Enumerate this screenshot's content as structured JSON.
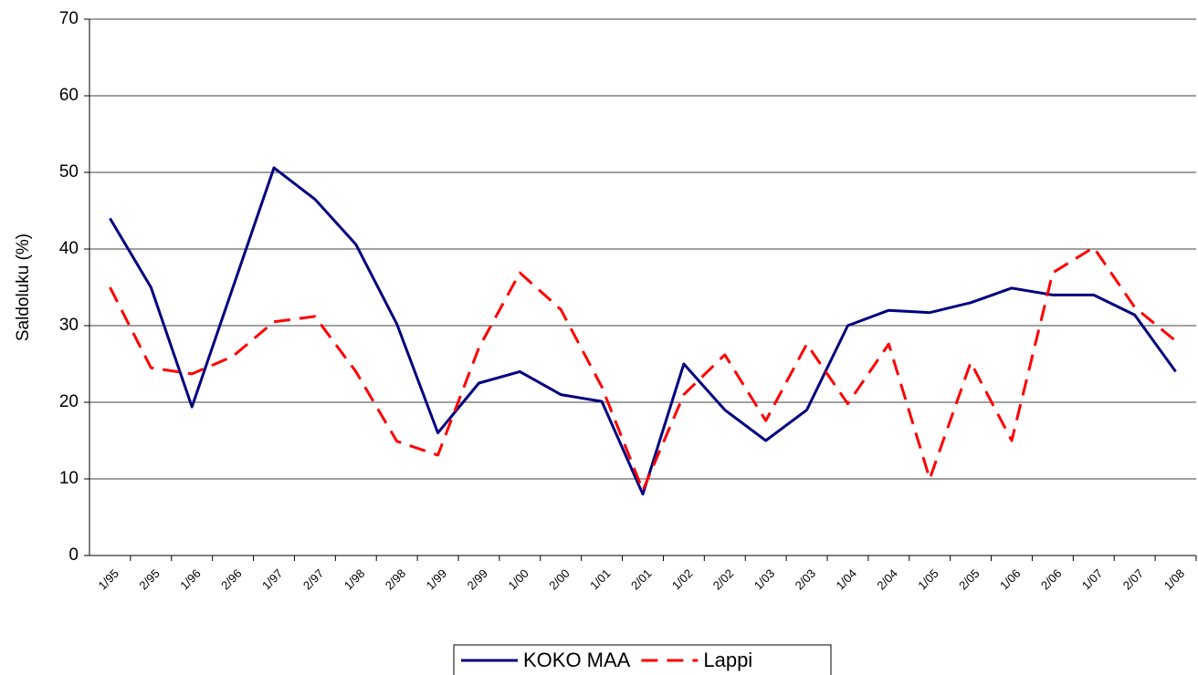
{
  "chart_data": {
    "type": "line",
    "y_label": "Saldoluku (%)",
    "categories": [
      "1/95",
      "2/95",
      "1/96",
      "2/96",
      "1/97",
      "2/97",
      "1/98",
      "2/98",
      "1/99",
      "2/99",
      "1/00",
      "2/00",
      "1/01",
      "2/01",
      "1/02",
      "2/02",
      "1/03",
      "2/03",
      "1/04",
      "2/04",
      "1/05",
      "2/05",
      "1/06",
      "2/06",
      "1/07",
      "2/07",
      "1/08"
    ],
    "series": [
      {
        "name": "KOKO MAA",
        "color": "#000080",
        "dash": "solid",
        "values": [
          44,
          35,
          19.4,
          35,
          50.6,
          46.5,
          40.6,
          30.2,
          16,
          22.5,
          24,
          21,
          20.1,
          8,
          25,
          19,
          15,
          19,
          30,
          32,
          31.7,
          33,
          34.9,
          34,
          34,
          31.4,
          24
        ]
      },
      {
        "name": "Lappi",
        "color": "#ff0000",
        "dash": "dashed",
        "values": [
          35,
          24.5,
          23.7,
          26,
          30.5,
          31.2,
          24,
          14.9,
          13.1,
          27.1,
          36.9,
          32.1,
          22,
          8.5,
          21,
          26.2,
          17.6,
          27.6,
          19.8,
          27.6,
          10,
          25.2,
          15,
          36.9,
          40.2,
          32.4,
          28
        ]
      }
    ],
    "ylim": [
      0,
      70
    ],
    "yticks": [
      0,
      10,
      20,
      30,
      40,
      50,
      60,
      70
    ],
    "grid": true,
    "legend": "bottom"
  }
}
